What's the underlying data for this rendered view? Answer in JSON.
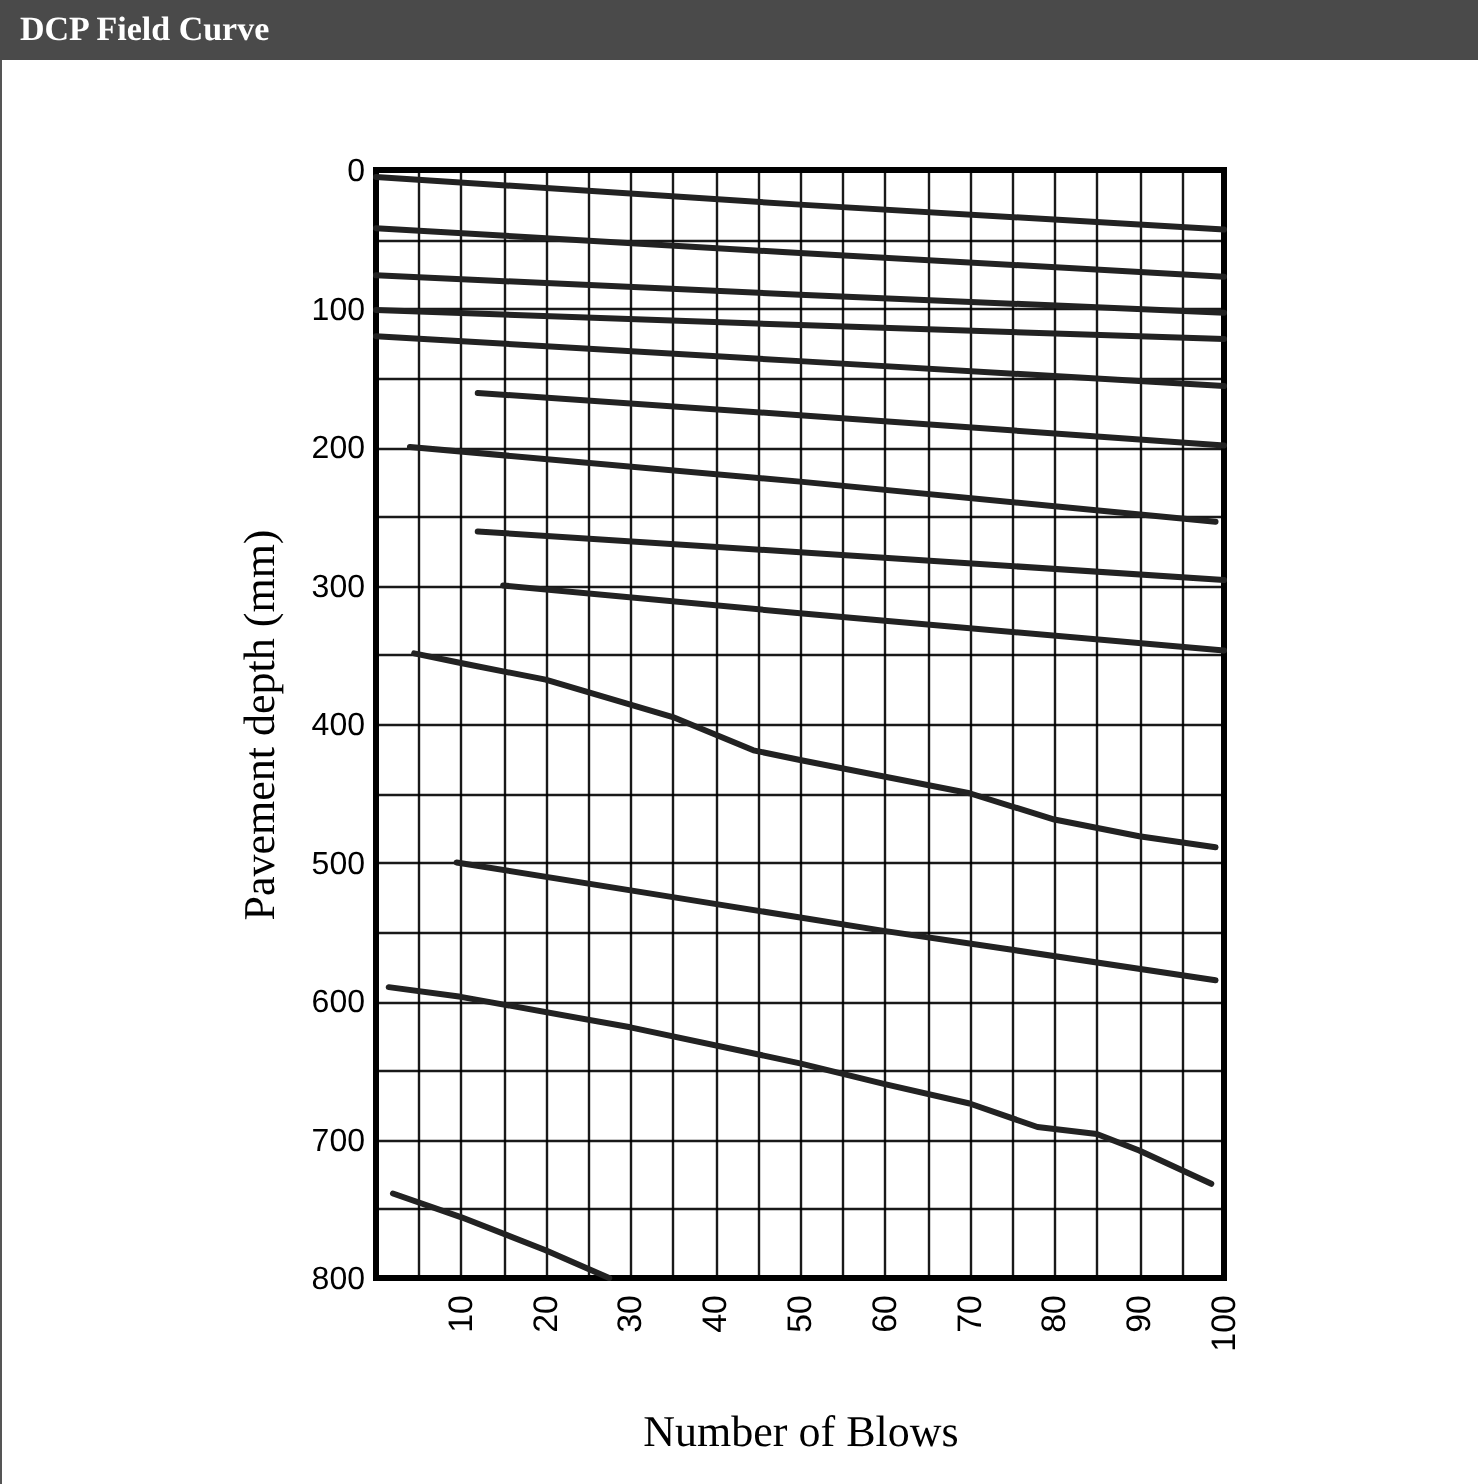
{
  "chart_data": {
    "type": "line",
    "title": "DCP Field Curve",
    "xlabel": "Number of Blows",
    "ylabel": "Pavement depth (mm)",
    "xlim": [
      0,
      100
    ],
    "ylim": [
      800,
      0
    ],
    "xticks": [
      {
        "value": 5,
        "label": null
      },
      10,
      {
        "value": 15,
        "label": null
      },
      20,
      {
        "value": 25,
        "label": null
      },
      30,
      {
        "value": 35,
        "label": null
      },
      40,
      {
        "value": 45,
        "label": null
      },
      50,
      {
        "value": 55,
        "label": null
      },
      60,
      {
        "value": 65,
        "label": null
      },
      70,
      {
        "value": 75,
        "label": null
      },
      80,
      {
        "value": 85,
        "label": null
      },
      90,
      {
        "value": 95,
        "label": null
      },
      100
    ],
    "yticks": [
      0,
      {
        "value": 50,
        "label": null
      },
      100,
      {
        "value": 150,
        "label": null
      },
      200,
      {
        "value": 250,
        "label": null
      },
      300,
      {
        "value": 350,
        "label": null
      },
      400,
      {
        "value": 450,
        "label": null
      },
      500,
      {
        "value": 550,
        "label": null
      },
      600,
      {
        "value": 650,
        "label": null
      },
      700,
      {
        "value": 750,
        "label": null
      },
      800
    ],
    "grid": true,
    "legend": false,
    "marker": "none",
    "line_style": "solid",
    "series": [
      {
        "color": "#222222",
        "x": [
          0,
          50,
          100
        ],
        "values": [
          5,
          25,
          43
        ]
      },
      {
        "color": "#222222",
        "x": [
          0,
          50,
          100
        ],
        "values": [
          42,
          60,
          77
        ]
      },
      {
        "color": "#222222",
        "x": [
          0,
          50,
          100
        ],
        "values": [
          76,
          90,
          103
        ]
      },
      {
        "color": "#222222",
        "x": [
          0,
          50,
          100
        ],
        "values": [
          101,
          112,
          122
        ]
      },
      {
        "color": "#222222",
        "x": [
          0,
          50,
          100
        ],
        "values": [
          120,
          138,
          156
        ]
      },
      {
        "color": "#222222",
        "x": [
          12,
          50,
          100
        ],
        "values": [
          161,
          177,
          199
        ]
      },
      {
        "color": "#222222",
        "x": [
          4,
          50,
          99
        ],
        "values": [
          200,
          225,
          254
        ]
      },
      {
        "color": "#222222",
        "x": [
          12,
          50,
          100
        ],
        "values": [
          261,
          276,
          296
        ]
      },
      {
        "color": "#222222",
        "x": [
          15,
          50,
          100
        ],
        "values": [
          300,
          320,
          347
        ]
      },
      {
        "color": "#222222",
        "x": [
          4.5,
          10,
          20,
          35,
          44.5,
          50,
          70,
          80,
          90,
          99
        ],
        "values": [
          349,
          356,
          368,
          395,
          419,
          426,
          450,
          469,
          481,
          489
        ]
      },
      {
        "color": "#222222",
        "x": [
          9.5,
          35,
          59.5,
          75,
          99
        ],
        "values": [
          500,
          525,
          549,
          563,
          585
        ]
      },
      {
        "color": "#222222",
        "x": [
          1.5,
          10,
          30,
          50,
          60,
          70,
          78,
          85,
          90,
          98.5
        ],
        "values": [
          590,
          597,
          619,
          645,
          660,
          674,
          691,
          696,
          708,
          732
        ]
      },
      {
        "color": "#222222",
        "x": [
          2,
          10,
          20,
          27.5
        ],
        "values": [
          739,
          756,
          780,
          800
        ]
      }
    ]
  }
}
